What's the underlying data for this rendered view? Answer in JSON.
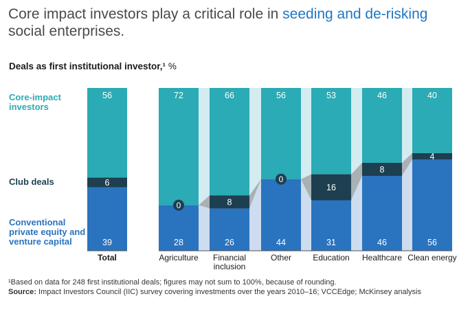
{
  "title_part1": "Core impact investors play a critical role in ",
  "title_highlight": "seeding and de-risking",
  "title_part2": "social enterprises.",
  "subtitle": "Deals as first institutional investor,¹",
  "subtitle_unit": "%",
  "series_labels": {
    "core": "Core-impact investors",
    "club": "Club deals",
    "conventional": "Conventional private equity and venture capital"
  },
  "footnote": "¹Based on data for 248 first institutional deals; figures may not sum to 100%, because of rounding.",
  "source_label": "Source:",
  "source_text": "Impact Investors Council (IIC) survey covering investments over the years 2010–16; VCCEdge; McKinsey analysis",
  "colors": {
    "core": "#2aabb5",
    "club": "#1d3f50",
    "conventional": "#2a73bf",
    "core_band": "#d3ecef",
    "club_band": "#a9b1b5",
    "conv_band": "#cddcee"
  },
  "chart_data": {
    "type": "bar",
    "stacked": true,
    "ylim": [
      0,
      100
    ],
    "categories": [
      "Total",
      "Agriculture",
      "Financial\ninclusion",
      "Other",
      "Education",
      "Healthcare",
      "Clean energy"
    ],
    "series": [
      {
        "name": "Conventional private equity and venture capital",
        "values": [
          39,
          28,
          26,
          44,
          31,
          46,
          56
        ]
      },
      {
        "name": "Club deals",
        "values": [
          6,
          0,
          8,
          0,
          16,
          8,
          4
        ]
      },
      {
        "name": "Core-impact investors",
        "values": [
          56,
          72,
          66,
          56,
          53,
          46,
          40
        ]
      }
    ]
  }
}
